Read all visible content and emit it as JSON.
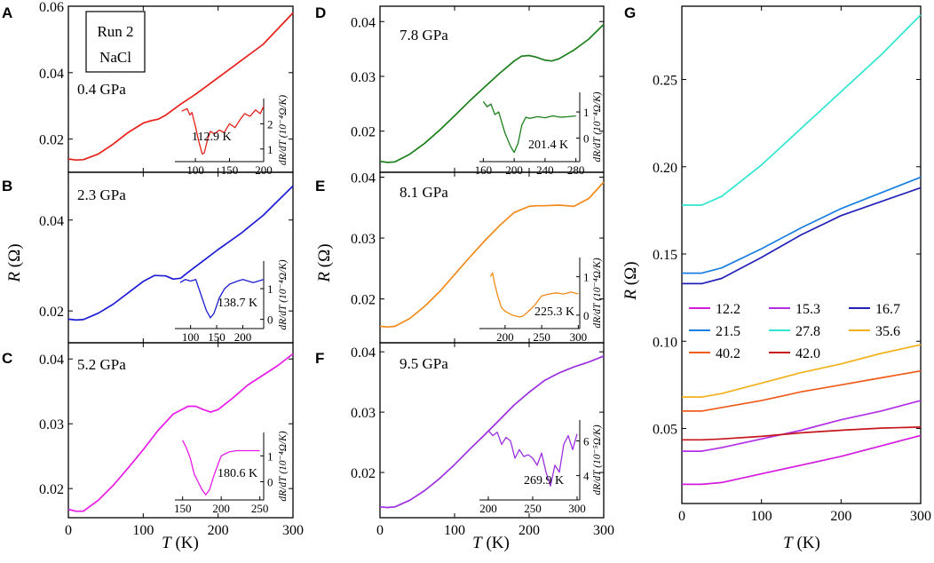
{
  "figure": {
    "xlabel_italic": "T",
    "xlabel_unit": " (K)",
    "ylabel_italic": "R",
    "ylabel_unit": " (Ω)",
    "run_label": "Run 2",
    "medium_label": "NaCl",
    "inset_ylabel": "dR/dT (10⁻⁴Ω/K)",
    "inset_ylabel_F": "dR/dT (10⁻⁵Ω/K)"
  },
  "chart_data": [
    {
      "panel": "A",
      "type": "line",
      "label": "0.4 GPa",
      "color": "#e8201a",
      "xlim": [
        0,
        300
      ],
      "ylim": [
        0.01,
        0.06
      ],
      "xticks": [],
      "yticks": [
        0.02,
        0.04,
        0.06
      ],
      "ytick_labels": [
        "0.02",
        "0.04",
        "0.06"
      ],
      "x": [
        0,
        10,
        20,
        40,
        60,
        80,
        100,
        110,
        120,
        130,
        150,
        170,
        200,
        230,
        260,
        300
      ],
      "y": [
        0.014,
        0.0137,
        0.0138,
        0.0155,
        0.0185,
        0.022,
        0.0248,
        0.0255,
        0.026,
        0.0272,
        0.0305,
        0.0335,
        0.0385,
        0.0435,
        0.0485,
        0.058
      ],
      "inset": {
        "xlim": [
          70,
          200
        ],
        "ylim": [
          0.5,
          3.0
        ],
        "xticks": [
          100,
          150,
          200
        ],
        "yticks": [
          1,
          2
        ],
        "annotation": "112.9 K",
        "x": [
          80,
          88,
          92,
          95,
          100,
          105,
          110,
          113,
          118,
          122,
          128,
          135,
          142,
          150,
          158,
          165,
          172,
          180,
          188,
          195,
          200
        ],
        "y": [
          2.5,
          2.6,
          2.35,
          2.45,
          1.9,
          1.3,
          0.8,
          0.85,
          1.4,
          1.7,
          1.6,
          1.75,
          1.65,
          2.0,
          1.85,
          2.15,
          2.4,
          2.3,
          2.55,
          2.4,
          2.7
        ]
      }
    },
    {
      "panel": "B",
      "type": "line",
      "label": "2.3 GPa",
      "color": "#1c1cd6",
      "xlim": [
        0,
        300
      ],
      "ylim": [
        0.013,
        0.0505
      ],
      "xticks": [],
      "yticks": [
        0.02,
        0.04
      ],
      "ytick_labels": [
        "0.02",
        "0.04"
      ],
      "x": [
        0,
        10,
        20,
        40,
        60,
        80,
        100,
        115,
        130,
        140,
        150,
        160,
        180,
        200,
        230,
        260,
        300
      ],
      "y": [
        0.0182,
        0.018,
        0.0181,
        0.0195,
        0.0215,
        0.024,
        0.0265,
        0.0278,
        0.0277,
        0.027,
        0.0272,
        0.0285,
        0.031,
        0.0335,
        0.037,
        0.041,
        0.0475
      ],
      "inset": {
        "xlim": [
          70,
          240
        ],
        "ylim": [
          -0.3,
          1.9
        ],
        "xticks": [
          100,
          150,
          200
        ],
        "yticks": [
          0,
          1
        ],
        "annotation": "138.7 K",
        "x": [
          80,
          90,
          100,
          110,
          120,
          130,
          138,
          145,
          155,
          165,
          175,
          190,
          200,
          210,
          220,
          230,
          240
        ],
        "y": [
          1.2,
          1.3,
          1.25,
          1.3,
          0.8,
          0.3,
          0.05,
          0.2,
          0.7,
          1.0,
          1.15,
          1.25,
          1.3,
          1.25,
          1.2,
          1.25,
          1.3
        ]
      }
    },
    {
      "panel": "C",
      "type": "line",
      "label": "5.2 GPa",
      "color": "#e81ae8",
      "xlim": [
        0,
        300
      ],
      "ylim": [
        0.0155,
        0.0425
      ],
      "xticks": [
        0,
        100,
        200,
        300
      ],
      "yticks": [
        0.02,
        0.03,
        0.04
      ],
      "ytick_labels": [
        "0.02",
        "0.03",
        "0.04"
      ],
      "x": [
        0,
        10,
        20,
        40,
        60,
        80,
        100,
        120,
        140,
        160,
        170,
        180,
        190,
        200,
        220,
        240,
        260,
        280,
        300
      ],
      "y": [
        0.0168,
        0.0165,
        0.0165,
        0.0182,
        0.0205,
        0.0232,
        0.026,
        0.029,
        0.0315,
        0.0327,
        0.0327,
        0.0322,
        0.0318,
        0.0322,
        0.034,
        0.036,
        0.0375,
        0.039,
        0.0408
      ],
      "inset": {
        "xlim": [
          140,
          255
        ],
        "ylim": [
          -0.7,
          1.9
        ],
        "xticks": [
          150,
          200,
          250
        ],
        "yticks": [
          0,
          1
        ],
        "annotation": "180.6 K",
        "x": [
          150,
          155,
          160,
          165,
          170,
          175,
          180,
          185,
          190,
          195,
          200,
          210,
          220,
          230,
          240,
          250
        ],
        "y": [
          1.6,
          1.3,
          0.9,
          0.3,
          0.0,
          -0.3,
          -0.5,
          -0.3,
          0.2,
          0.6,
          1.0,
          1.15,
          1.2,
          1.2,
          1.2,
          1.2
        ]
      }
    },
    {
      "panel": "D",
      "type": "line",
      "label": "7.8 GPa",
      "color": "#1a7f1a",
      "xlim": [
        0,
        300
      ],
      "ylim": [
        0.0125,
        0.0428
      ],
      "xticks": [],
      "yticks": [
        0.02,
        0.03,
        0.04
      ],
      "ytick_labels": [
        "0.02",
        "0.03",
        "0.04"
      ],
      "x": [
        0,
        10,
        20,
        40,
        60,
        80,
        100,
        120,
        140,
        160,
        180,
        190,
        200,
        210,
        220,
        230,
        240,
        260,
        280,
        300
      ],
      "y": [
        0.0145,
        0.0143,
        0.0144,
        0.0158,
        0.0178,
        0.0202,
        0.0228,
        0.0255,
        0.028,
        0.0305,
        0.0328,
        0.0337,
        0.0338,
        0.0335,
        0.033,
        0.0328,
        0.0332,
        0.0348,
        0.0368,
        0.0395
      ],
      "inset": {
        "xlim": [
          155,
          285
        ],
        "ylim": [
          -0.9,
          1.75
        ],
        "xticks": [
          160,
          200,
          240,
          280
        ],
        "yticks": [
          0,
          1
        ],
        "annotation": "201.4 K",
        "x": [
          160,
          165,
          170,
          175,
          180,
          188,
          195,
          200,
          205,
          210,
          215,
          220,
          230,
          240,
          250,
          260,
          270,
          280
        ],
        "y": [
          1.4,
          1.2,
          1.3,
          0.9,
          1.0,
          0.2,
          -0.3,
          -0.55,
          -0.2,
          0.5,
          0.8,
          0.75,
          0.82,
          0.78,
          0.85,
          0.8,
          0.82,
          0.85
        ]
      }
    },
    {
      "panel": "E",
      "type": "line",
      "label": "8.1 GPa",
      "color": "#f28a1a",
      "xlim": [
        0,
        300
      ],
      "ylim": [
        0.0128,
        0.0408
      ],
      "xticks": [],
      "yticks": [
        0.02,
        0.03,
        0.04
      ],
      "ytick_labels": [
        "0.02",
        "0.03",
        "0.04"
      ],
      "x": [
        0,
        10,
        20,
        40,
        60,
        80,
        100,
        120,
        140,
        160,
        180,
        200,
        210,
        220,
        240,
        260,
        280,
        300
      ],
      "y": [
        0.0155,
        0.0154,
        0.0155,
        0.0168,
        0.0188,
        0.0212,
        0.024,
        0.0268,
        0.0295,
        0.032,
        0.0342,
        0.0352,
        0.0353,
        0.0353,
        0.0354,
        0.0352,
        0.0365,
        0.0392
      ],
      "inset": {
        "xlim": [
          165,
          302
        ],
        "ylim": [
          -0.35,
          1.5
        ],
        "xticks": [
          200,
          250,
          300
        ],
        "yticks": [
          0,
          1
        ],
        "annotation": "225.3 K",
        "x": [
          180,
          183,
          186,
          190,
          195,
          200,
          210,
          220,
          225,
          232,
          240,
          250,
          260,
          270,
          280,
          290,
          300
        ],
        "y": [
          1.0,
          1.1,
          0.8,
          0.5,
          0.2,
          0.1,
          0.0,
          -0.05,
          -0.02,
          0.1,
          0.25,
          0.5,
          0.55,
          0.58,
          0.55,
          0.6,
          0.55
        ]
      }
    },
    {
      "panel": "F",
      "type": "line",
      "label": "9.5 GPa",
      "color": "#9b30e0",
      "xlim": [
        0,
        300
      ],
      "ylim": [
        0.0125,
        0.0415
      ],
      "xticks": [
        0,
        100,
        200,
        300
      ],
      "yticks": [
        0.02,
        0.03,
        0.04
      ],
      "ytick_labels": [
        "0.02",
        "0.03",
        "0.04"
      ],
      "x": [
        0,
        10,
        20,
        40,
        60,
        80,
        100,
        120,
        140,
        160,
        180,
        200,
        220,
        240,
        260,
        280,
        300
      ],
      "y": [
        0.0143,
        0.0142,
        0.0143,
        0.0154,
        0.017,
        0.019,
        0.0213,
        0.0238,
        0.0262,
        0.0287,
        0.0312,
        0.0333,
        0.0352,
        0.0365,
        0.0375,
        0.0383,
        0.0393
      ],
      "inset": {
        "xlim": [
          190,
          303
        ],
        "ylim": [
          2.6,
          7.2
        ],
        "xticks": [
          200,
          250,
          300
        ],
        "yticks": [
          4,
          6
        ],
        "annotation": "269.9 K",
        "x": [
          200,
          205,
          210,
          215,
          220,
          225,
          230,
          235,
          240,
          245,
          250,
          255,
          260,
          265,
          270,
          275,
          280,
          285,
          290,
          295,
          300
        ],
        "y": [
          6.6,
          6.3,
          6.5,
          5.8,
          6.2,
          6.0,
          5.0,
          5.5,
          5.1,
          5.2,
          5.0,
          4.6,
          5.3,
          4.2,
          3.4,
          4.6,
          4.2,
          5.8,
          6.3,
          5.5,
          6.4
        ]
      }
    },
    {
      "panel": "G",
      "type": "line",
      "xlim": [
        0,
        300
      ],
      "ylim": [
        0.007,
        0.292
      ],
      "xticks": [
        0,
        100,
        200,
        300
      ],
      "yticks": [
        0.05,
        0.1,
        0.15,
        0.2,
        0.25
      ],
      "ytick_labels": [
        "0.05",
        "0.10",
        "0.15",
        "0.20",
        "0.25"
      ],
      "x": [
        0,
        25,
        50,
        100,
        150,
        200,
        250,
        300
      ],
      "series": [
        {
          "name": "12.2",
          "color": "#d41ae0",
          "values": [
            0.018,
            0.018,
            0.019,
            0.024,
            0.029,
            0.034,
            0.04,
            0.046
          ]
        },
        {
          "name": "15.3",
          "color": "#b22ee8",
          "values": [
            0.037,
            0.037,
            0.039,
            0.044,
            0.049,
            0.055,
            0.06,
            0.066
          ]
        },
        {
          "name": "16.7",
          "color": "#2222b8",
          "values": [
            0.133,
            0.133,
            0.136,
            0.148,
            0.161,
            0.172,
            0.18,
            0.188
          ]
        },
        {
          "name": "21.5",
          "color": "#1a7fe0",
          "values": [
            0.139,
            0.139,
            0.142,
            0.153,
            0.165,
            0.176,
            0.185,
            0.194
          ]
        },
        {
          "name": "27.8",
          "color": "#2fe6d0",
          "values": [
            0.178,
            0.178,
            0.183,
            0.201,
            0.222,
            0.243,
            0.264,
            0.287
          ]
        },
        {
          "name": "35.6",
          "color": "#f2b01a",
          "values": [
            0.068,
            0.068,
            0.07,
            0.076,
            0.082,
            0.087,
            0.093,
            0.098
          ]
        },
        {
          "name": "40.2",
          "color": "#f25a1a",
          "values": [
            0.06,
            0.06,
            0.062,
            0.066,
            0.071,
            0.075,
            0.079,
            0.083
          ]
        },
        {
          "name": "42.0",
          "color": "#c4161c",
          "values": [
            0.0435,
            0.0435,
            0.044,
            0.0455,
            0.0475,
            0.049,
            0.0502,
            0.0508
          ]
        }
      ]
    }
  ]
}
